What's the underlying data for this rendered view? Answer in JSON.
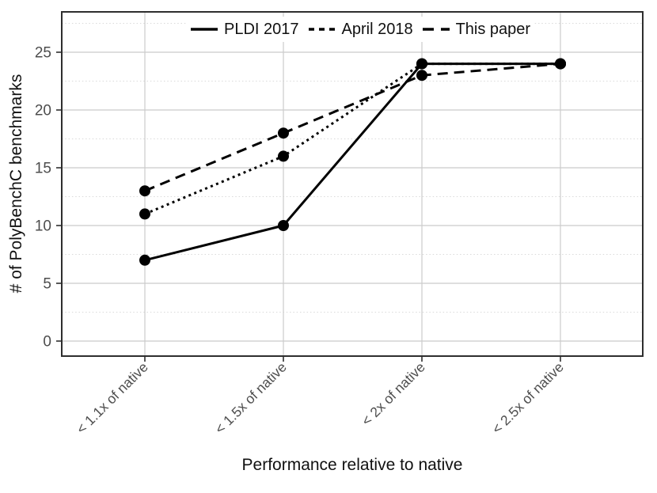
{
  "figure": {
    "background": "#ffffff",
    "frame_color": "#2e2e2e",
    "major_grid_color": "#cbcbcb",
    "minor_grid_color": "#dadada",
    "tick_label_color": "#4d4d4d",
    "axis_title_color": "#111111",
    "series_color": "#000000"
  },
  "chart_data": {
    "type": "line",
    "title": "",
    "xlabel": "Performance relative to native",
    "ylabel": "# of PolyBenchC benchmarks",
    "categories": [
      "< 1.1x of native",
      "< 1.5x of native",
      "< 2x of native",
      "< 2.5x of native"
    ],
    "series": [
      {
        "name": "PLDI 2017",
        "line_style": "solid",
        "marker": "circle",
        "color": "#000000",
        "values": [
          7,
          10,
          24,
          24
        ]
      },
      {
        "name": "April 2018",
        "line_style": "dotted",
        "marker": "circle",
        "color": "#000000",
        "values": [
          11,
          16,
          24,
          24
        ]
      },
      {
        "name": "This paper",
        "line_style": "dashed",
        "marker": "circle",
        "color": "#000000",
        "values": [
          13,
          18,
          23,
          24
        ]
      }
    ],
    "yticks": [
      0,
      5,
      10,
      15,
      20,
      25
    ],
    "minor_yticks": [
      2.5,
      7.5,
      12.5,
      17.5,
      22.5,
      27.5
    ],
    "ylim": [
      -1.4,
      28.5
    ],
    "grid": {
      "major": true,
      "minor": true
    },
    "legend_position": "top-center-inside",
    "legend_entries": [
      "PLDI 2017",
      "April 2018",
      "This paper"
    ]
  }
}
